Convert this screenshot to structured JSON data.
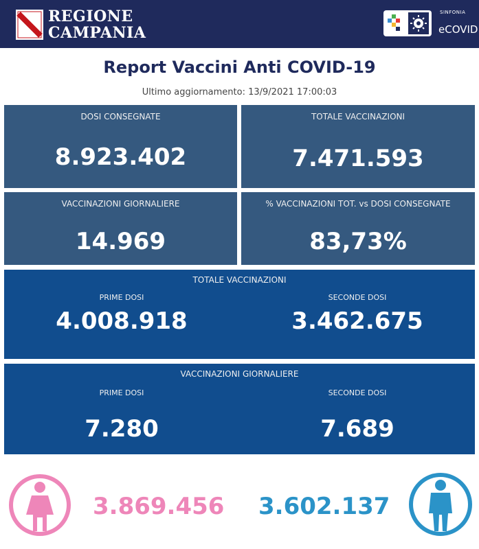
{
  "header": {
    "region_line1": "REGIONE",
    "region_line2": "CAMPANIA",
    "brand_small": "SINFONIA",
    "brand_name": "eCOVID"
  },
  "report": {
    "title": "Report Vaccini Anti COVID-19",
    "updated": "Ultimo aggiornamento: 13/9/2021  17:00:03"
  },
  "cards": {
    "dosi_consegnate": {
      "label": "DOSI  CONSEGNATE",
      "value": "8.923.402"
    },
    "totale_vaccinazioni": {
      "label": "TOTALE VACCINAZIONI",
      "value": "7.471.593"
    },
    "vaccinazioni_giornaliere": {
      "label": "VACCINAZIONI GIORNALIERE",
      "value": "14.969"
    },
    "percentuale": {
      "label": "% VACCINAZIONI TOT. vs DOSI CONSEGNATE",
      "value": "83,73%"
    }
  },
  "totale_panel": {
    "title": "TOTALE VACCINAZIONI",
    "prime_label": "PRIME DOSI",
    "prime_value": "4.008.918",
    "seconde_label": "SECONDE DOSI",
    "seconde_value": "3.462.675"
  },
  "giornaliere_panel": {
    "title": "VACCINAZIONI GIORNALIERE",
    "prime_label": "PRIME DOSI",
    "prime_value": "7.280",
    "seconde_label": "SECONDE DOSI",
    "seconde_value": "7.689"
  },
  "gender": {
    "female_value": "3.869.456",
    "male_value": "3.602.137",
    "female_color": "#ee86b9",
    "male_color": "#2b93c8"
  },
  "colors": {
    "header_bg": "#1f2a5c",
    "card_bg": "#35597f",
    "panel_bg": "#114d8e"
  }
}
